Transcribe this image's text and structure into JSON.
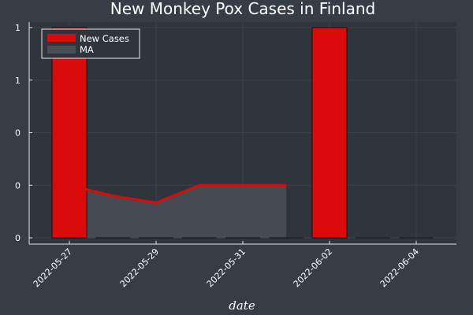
{
  "chart_data": {
    "type": "bar",
    "title": "New Monkey Pox Cases in Finland",
    "xlabel": "date",
    "ylabel": "",
    "x": [
      "2022-05-27",
      "2022-05-28",
      "2022-05-29",
      "2022-05-30",
      "2022-05-31",
      "2022-06-01",
      "2022-06-02",
      "2022-06-03",
      "2022-06-04"
    ],
    "x_tick_labels": [
      "2022-05-27",
      "2022-05-29",
      "2022-05-31",
      "2022-06-02",
      "2022-06-04"
    ],
    "y_tick_labels": [
      "0",
      "0",
      "0",
      "1",
      "1"
    ],
    "y_tick_values": [
      0,
      0.25,
      0.5,
      0.75,
      1.0
    ],
    "ylim": [
      0,
      1
    ],
    "grid": true,
    "legend_position": "top-left",
    "series": [
      {
        "name": "New Cases",
        "type": "bar",
        "color": "#d90b0b",
        "values": [
          1,
          0,
          0,
          0,
          0,
          0,
          1,
          0,
          0
        ]
      },
      {
        "name": "MA",
        "type": "line+area",
        "color": "#d90b0b",
        "area_color": "#4a4e56",
        "x": [
          "2022-05-27",
          "2022-05-28",
          "2022-05-29",
          "2022-05-30",
          "2022-05-31",
          "2022-06-01"
        ],
        "values": [
          0.25,
          0.2,
          0.167,
          0.25,
          0.25,
          0.25
        ]
      }
    ]
  }
}
